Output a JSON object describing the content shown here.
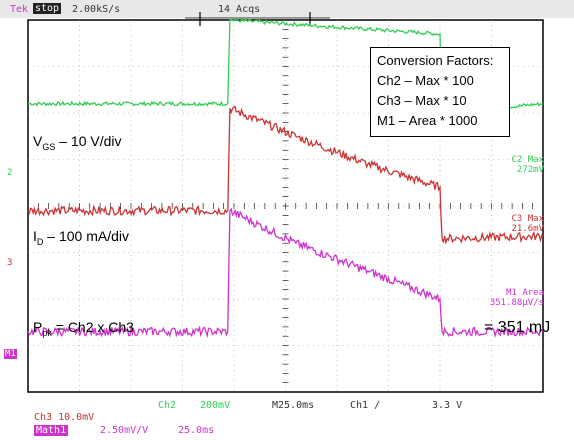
{
  "header": {
    "brand": "Tek",
    "run_state": "stop",
    "sample_rate": "2.00kS/s",
    "acquisitions": "14 Acqs"
  },
  "conversion_box": {
    "title": "Conversion Factors:",
    "lines": [
      "Ch2 – Max * 100",
      "Ch3 – Max * 10",
      "M1 – Area * 1000"
    ]
  },
  "annotations": {
    "vgs_main": "V",
    "vgs_sub": "GS",
    "vgs_rest": " – 10 V/div",
    "id_main": "I",
    "id_sub": "D",
    "id_rest": " – 100 mA/div",
    "ppk_main": "P",
    "ppk_sub": "pk",
    "ppk_rest": " = Ch2 x Ch3",
    "energy": "= 351 mJ"
  },
  "channel_markers": {
    "ch2": "2",
    "ch3": "3",
    "m1": "M1"
  },
  "measurements": {
    "c2_label": "C2 Max",
    "c2_value": "272mV",
    "c3_label": "C3 Max",
    "c3_value": "21.6mV",
    "m1_label": "M1 Area",
    "m1_value": "351.88µV/s"
  },
  "footer": {
    "ch2_label": "Ch2",
    "ch2_scale": "200mV",
    "timebase": "M25.0ms",
    "trigger": "Ch1 ∕",
    "trigger_level": "3.3 V",
    "ch3_scale": "Ch3  10.0mV",
    "math_label": "Math1",
    "math_scale": "2.50mV/V",
    "math_time": "25.0ms"
  },
  "colors": {
    "ch2": "#33cc55",
    "ch3": "#cc3333",
    "math": "#cc33cc",
    "grid": "#000000",
    "header_bg": "#e8e8e8"
  },
  "chart_data": {
    "type": "line",
    "xlabel": "",
    "ylabel": "",
    "x_unit": "ms",
    "time_per_div": 25,
    "x_divisions": 10,
    "y_divisions": 8,
    "xlim": [
      0,
      250
    ],
    "series": [
      {
        "name": "VGS",
        "channel": "Ch2",
        "unit": "div",
        "x": [
          0,
          97,
          98,
          200,
          201,
          250
        ],
        "y": [
          2.2,
          2.2,
          4.0,
          3.7,
          2.0,
          2.2
        ]
      },
      {
        "name": "ID",
        "channel": "Ch3",
        "unit": "div",
        "x": [
          0,
          97,
          98,
          130,
          165,
          200,
          201,
          250
        ],
        "y": [
          -0.1,
          -0.1,
          2.1,
          1.5,
          0.9,
          0.4,
          -0.7,
          -0.65
        ]
      },
      {
        "name": "Ppk",
        "channel": "M1",
        "unit": "div",
        "x": [
          0,
          97,
          98,
          130,
          165,
          200,
          201,
          250
        ],
        "y": [
          -2.7,
          -2.7,
          -0.1,
          -0.8,
          -1.4,
          -2.0,
          -2.7,
          -2.7
        ]
      }
    ]
  }
}
